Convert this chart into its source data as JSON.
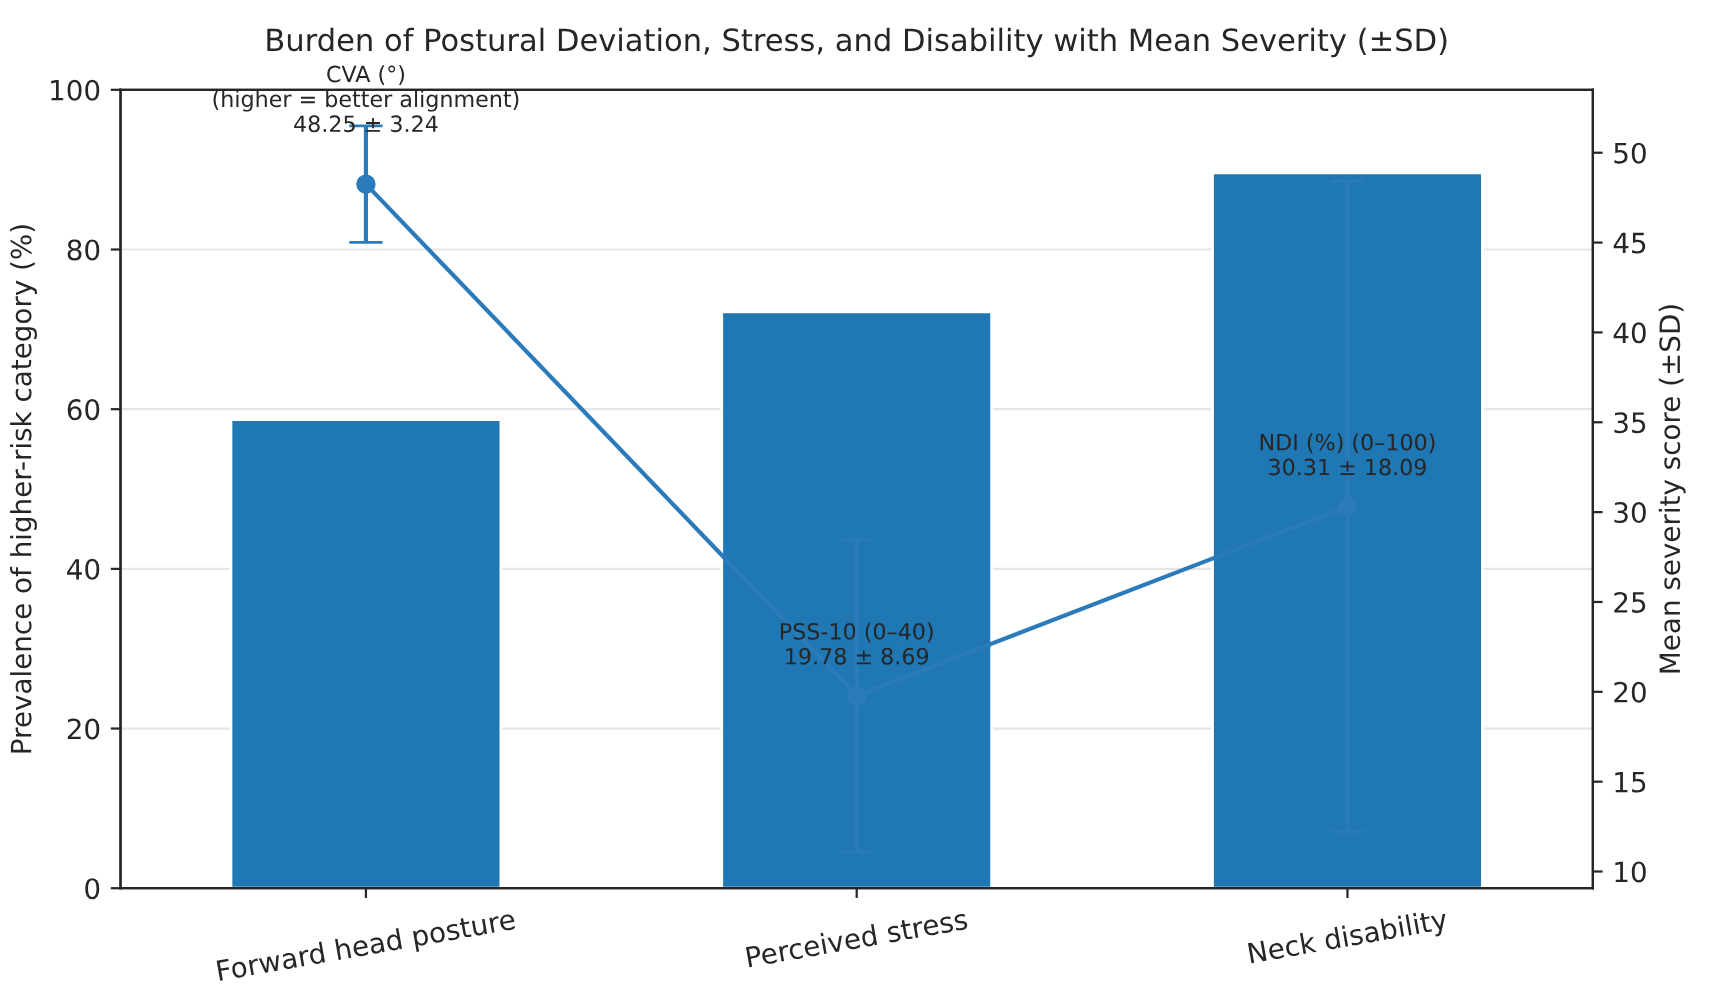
{
  "chart_data": {
    "type": "bar",
    "title": "Burden of Postural Deviation, Stress, and Disability with Mean Severity (±SD)",
    "categories": [
      "Forward head posture",
      "Perceived stress",
      "Neck disability"
    ],
    "ylabel": "Prevalence of higher-risk category (%)",
    "y2label": "Mean severity score (±SD)",
    "ylim": [
      0,
      100
    ],
    "yticks": [
      0,
      20,
      40,
      60,
      80,
      100
    ],
    "y2lim": [
      9.07,
      53.5
    ],
    "y2ticks": [
      10,
      15,
      20,
      25,
      30,
      35,
      40,
      45,
      50
    ],
    "grid": "y",
    "marker": "circle",
    "series": [
      {
        "color": "#1f77b4",
        "values": [
          58.7,
          72.2,
          89.6
        ]
      },
      {
        "type": "line",
        "axis": "y2",
        "color": "#2b7bba",
        "values": [
          48.25,
          19.78,
          30.31
        ],
        "errors": [
          3.24,
          8.69,
          18.09
        ]
      }
    ],
    "annotations": [
      "CVA (°)\n(higher = better alignment)\n48.25 ± 3.24",
      "PSS-10 (0–40)\n19.78 ± 8.69",
      "NDI (%) (0–100)\n30.31 ± 18.09"
    ]
  }
}
